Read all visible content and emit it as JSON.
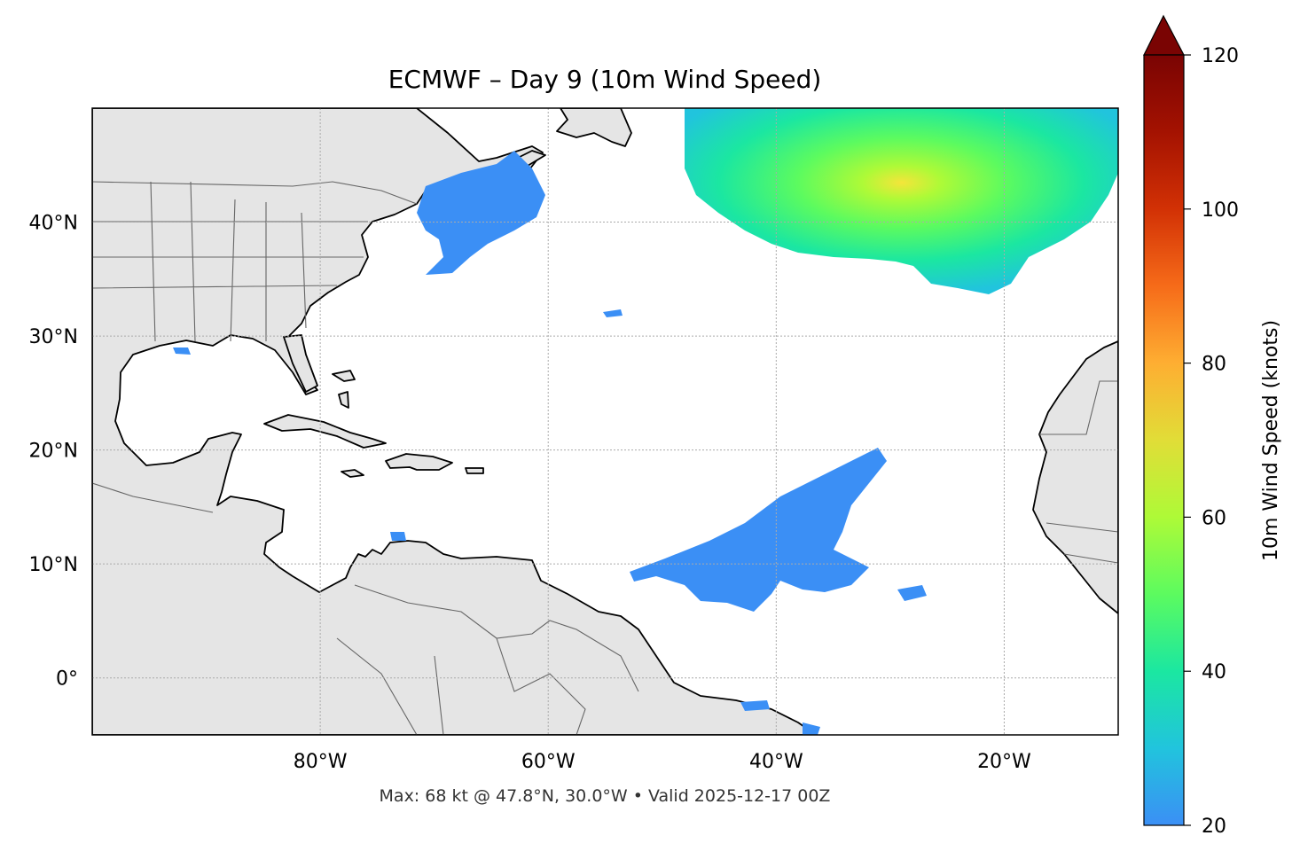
{
  "title": "ECMWF – Day 9 (10m Wind Speed)",
  "footer": "Max: 68 kt @ 47.8°N, 30.0°W • Valid 2025-12-17 00Z",
  "map": {
    "extent": {
      "lon": [
        -100,
        -10
      ],
      "lat": [
        -5,
        50
      ]
    },
    "lat_ticks": [
      "40°N",
      "30°N",
      "20°N",
      "10°N",
      "0°"
    ],
    "lat_values": [
      40,
      30,
      20,
      10,
      0
    ],
    "lon_ticks": [
      "80°W",
      "60°W",
      "40°W",
      "20°W"
    ],
    "lon_values": [
      -80,
      -60,
      -40,
      -20
    ],
    "land_color": "#e5e5e5",
    "coast_color": "#000000",
    "border_color": "#666666",
    "gridlines": true,
    "max_marker": {
      "lat": 47.8,
      "lon": -30.0,
      "value_kt": 68
    }
  },
  "colorbar": {
    "label": "10m Wind Speed (knots)",
    "ticks": [
      "20",
      "40",
      "60",
      "80",
      "100",
      "120"
    ],
    "tick_values": [
      20,
      40,
      60,
      80,
      100,
      120
    ],
    "range": [
      20,
      120
    ],
    "extend": "max",
    "colormap": [
      "#3b8ff5",
      "#21c4dd",
      "#1be7a1",
      "#5cfb5f",
      "#aefa37",
      "#e1dd37",
      "#feae32",
      "#f66b19",
      "#d23105",
      "#a41201",
      "#7a0403"
    ]
  }
}
